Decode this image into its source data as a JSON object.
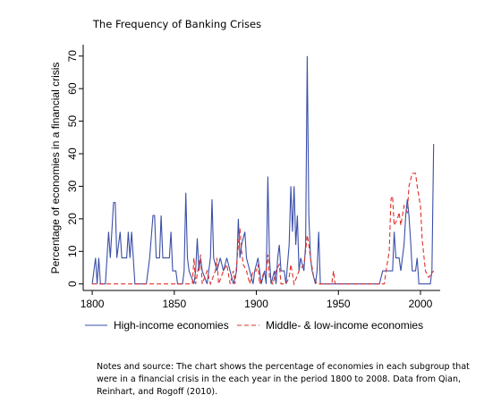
{
  "chart_data": {
    "type": "line",
    "title": "The Frequency of Banking Crises",
    "y_label": "Percentage of economies in a financial crisis",
    "notes": "Notes and source: The chart shows the percentage of economies in each subgroup that were in a financial crisis in the each year in the period 1800 to 2008. Data from Qian, Reinhart, and Rogoff (2010).",
    "xlim": [
      1794.5,
      2012
    ],
    "xticks": [
      1800,
      1850,
      1900,
      1950,
      2000
    ],
    "ylim": [
      -2,
      73.5
    ],
    "yticks": [
      0,
      10,
      20,
      30,
      40,
      50,
      60,
      70
    ],
    "grid": false,
    "series": [
      {
        "name": "High-income economies",
        "color": "#3a4fa8",
        "dash": false,
        "x": [
          1800,
          1802,
          1803,
          1804,
          1805,
          1808,
          1810,
          1811,
          1813,
          1814,
          1815,
          1817,
          1818,
          1821,
          1822,
          1823,
          1824,
          1825,
          1826,
          1833,
          1835,
          1837,
          1838,
          1839,
          1841,
          1842,
          1843,
          1845,
          1847,
          1848,
          1849,
          1851,
          1852,
          1855,
          1856,
          1857,
          1858,
          1859,
          1862,
          1863,
          1864,
          1865,
          1866,
          1867,
          1870,
          1872,
          1873,
          1874,
          1876,
          1878,
          1880,
          1882,
          1884,
          1886,
          1888,
          1889,
          1890,
          1891,
          1893,
          1894,
          1896,
          1898,
          1899,
          1901,
          1903,
          1905,
          1906,
          1907,
          1908,
          1909,
          1911,
          1912,
          1913,
          1914,
          1915,
          1917,
          1918,
          1920,
          1921,
          1922,
          1923,
          1924,
          1925,
          1926,
          1927,
          1929,
          1930,
          1931,
          1932,
          1933,
          1934,
          1936,
          1937,
          1938,
          1939,
          1975,
          1977,
          1983,
          1984,
          1985,
          1987,
          1988,
          1989,
          1990,
          1991,
          1992,
          1993,
          1994,
          1995,
          1997,
          1998,
          1999,
          2006,
          2007,
          2008
        ],
        "values": [
          0,
          8,
          0,
          8,
          0,
          0,
          16,
          8,
          25,
          25,
          8,
          16,
          8,
          8,
          16,
          8,
          16,
          8,
          0,
          0,
          8,
          21,
          21,
          8,
          8,
          21,
          8,
          8,
          8,
          16,
          4,
          4,
          0,
          0,
          4,
          28,
          8,
          4,
          0,
          4,
          14,
          4,
          8,
          4,
          0,
          8,
          26,
          8,
          4,
          8,
          4,
          8,
          4,
          0,
          4,
          20,
          8,
          12,
          16,
          8,
          4,
          0,
          4,
          8,
          0,
          4,
          0,
          33,
          8,
          0,
          4,
          0,
          8,
          12,
          4,
          4,
          0,
          12,
          30,
          16,
          30,
          12,
          21,
          4,
          8,
          4,
          12,
          70,
          21,
          8,
          4,
          0,
          4,
          16,
          0,
          0,
          4,
          4,
          16,
          8,
          8,
          4,
          8,
          12,
          21,
          26,
          21,
          13,
          4,
          4,
          8,
          0,
          0,
          4,
          43
        ]
      },
      {
        "name": "Middle- & low-income economies",
        "color": "#e0302a",
        "dash": true,
        "x": [
          1800,
          1861,
          1862,
          1863,
          1866,
          1867,
          1870,
          1872,
          1875,
          1876,
          1877,
          1880,
          1882,
          1884,
          1886,
          1887,
          1889,
          1890,
          1891,
          1892,
          1894,
          1896,
          1898,
          1900,
          1901,
          1902,
          1905,
          1906,
          1907,
          1908,
          1910,
          1912,
          1914,
          1915,
          1918,
          1920,
          1921,
          1923,
          1926,
          1929,
          1930,
          1931,
          1932,
          1933,
          1935,
          1937,
          1946,
          1947,
          1948,
          1978,
          1979,
          1981,
          1982,
          1983,
          1984,
          1986,
          1987,
          1988,
          1990,
          1992,
          1993,
          1995,
          1997,
          1998,
          2000,
          2001,
          2003,
          2005,
          2008
        ],
        "values": [
          0,
          0,
          8,
          0,
          9,
          0,
          4,
          0,
          4,
          8,
          0,
          4,
          6,
          0,
          4,
          0,
          12,
          17,
          10,
          6,
          4,
          0,
          4,
          4,
          6,
          0,
          4,
          4,
          9,
          2,
          0,
          4,
          6,
          0,
          0,
          2,
          6,
          0,
          4,
          6,
          10,
          15,
          12,
          8,
          2,
          0,
          0,
          4,
          0,
          0,
          4,
          10,
          26,
          27,
          18,
          20,
          22,
          18,
          24,
          22,
          30,
          34,
          34,
          30,
          24,
          14,
          4,
          2,
          4
        ]
      }
    ]
  }
}
